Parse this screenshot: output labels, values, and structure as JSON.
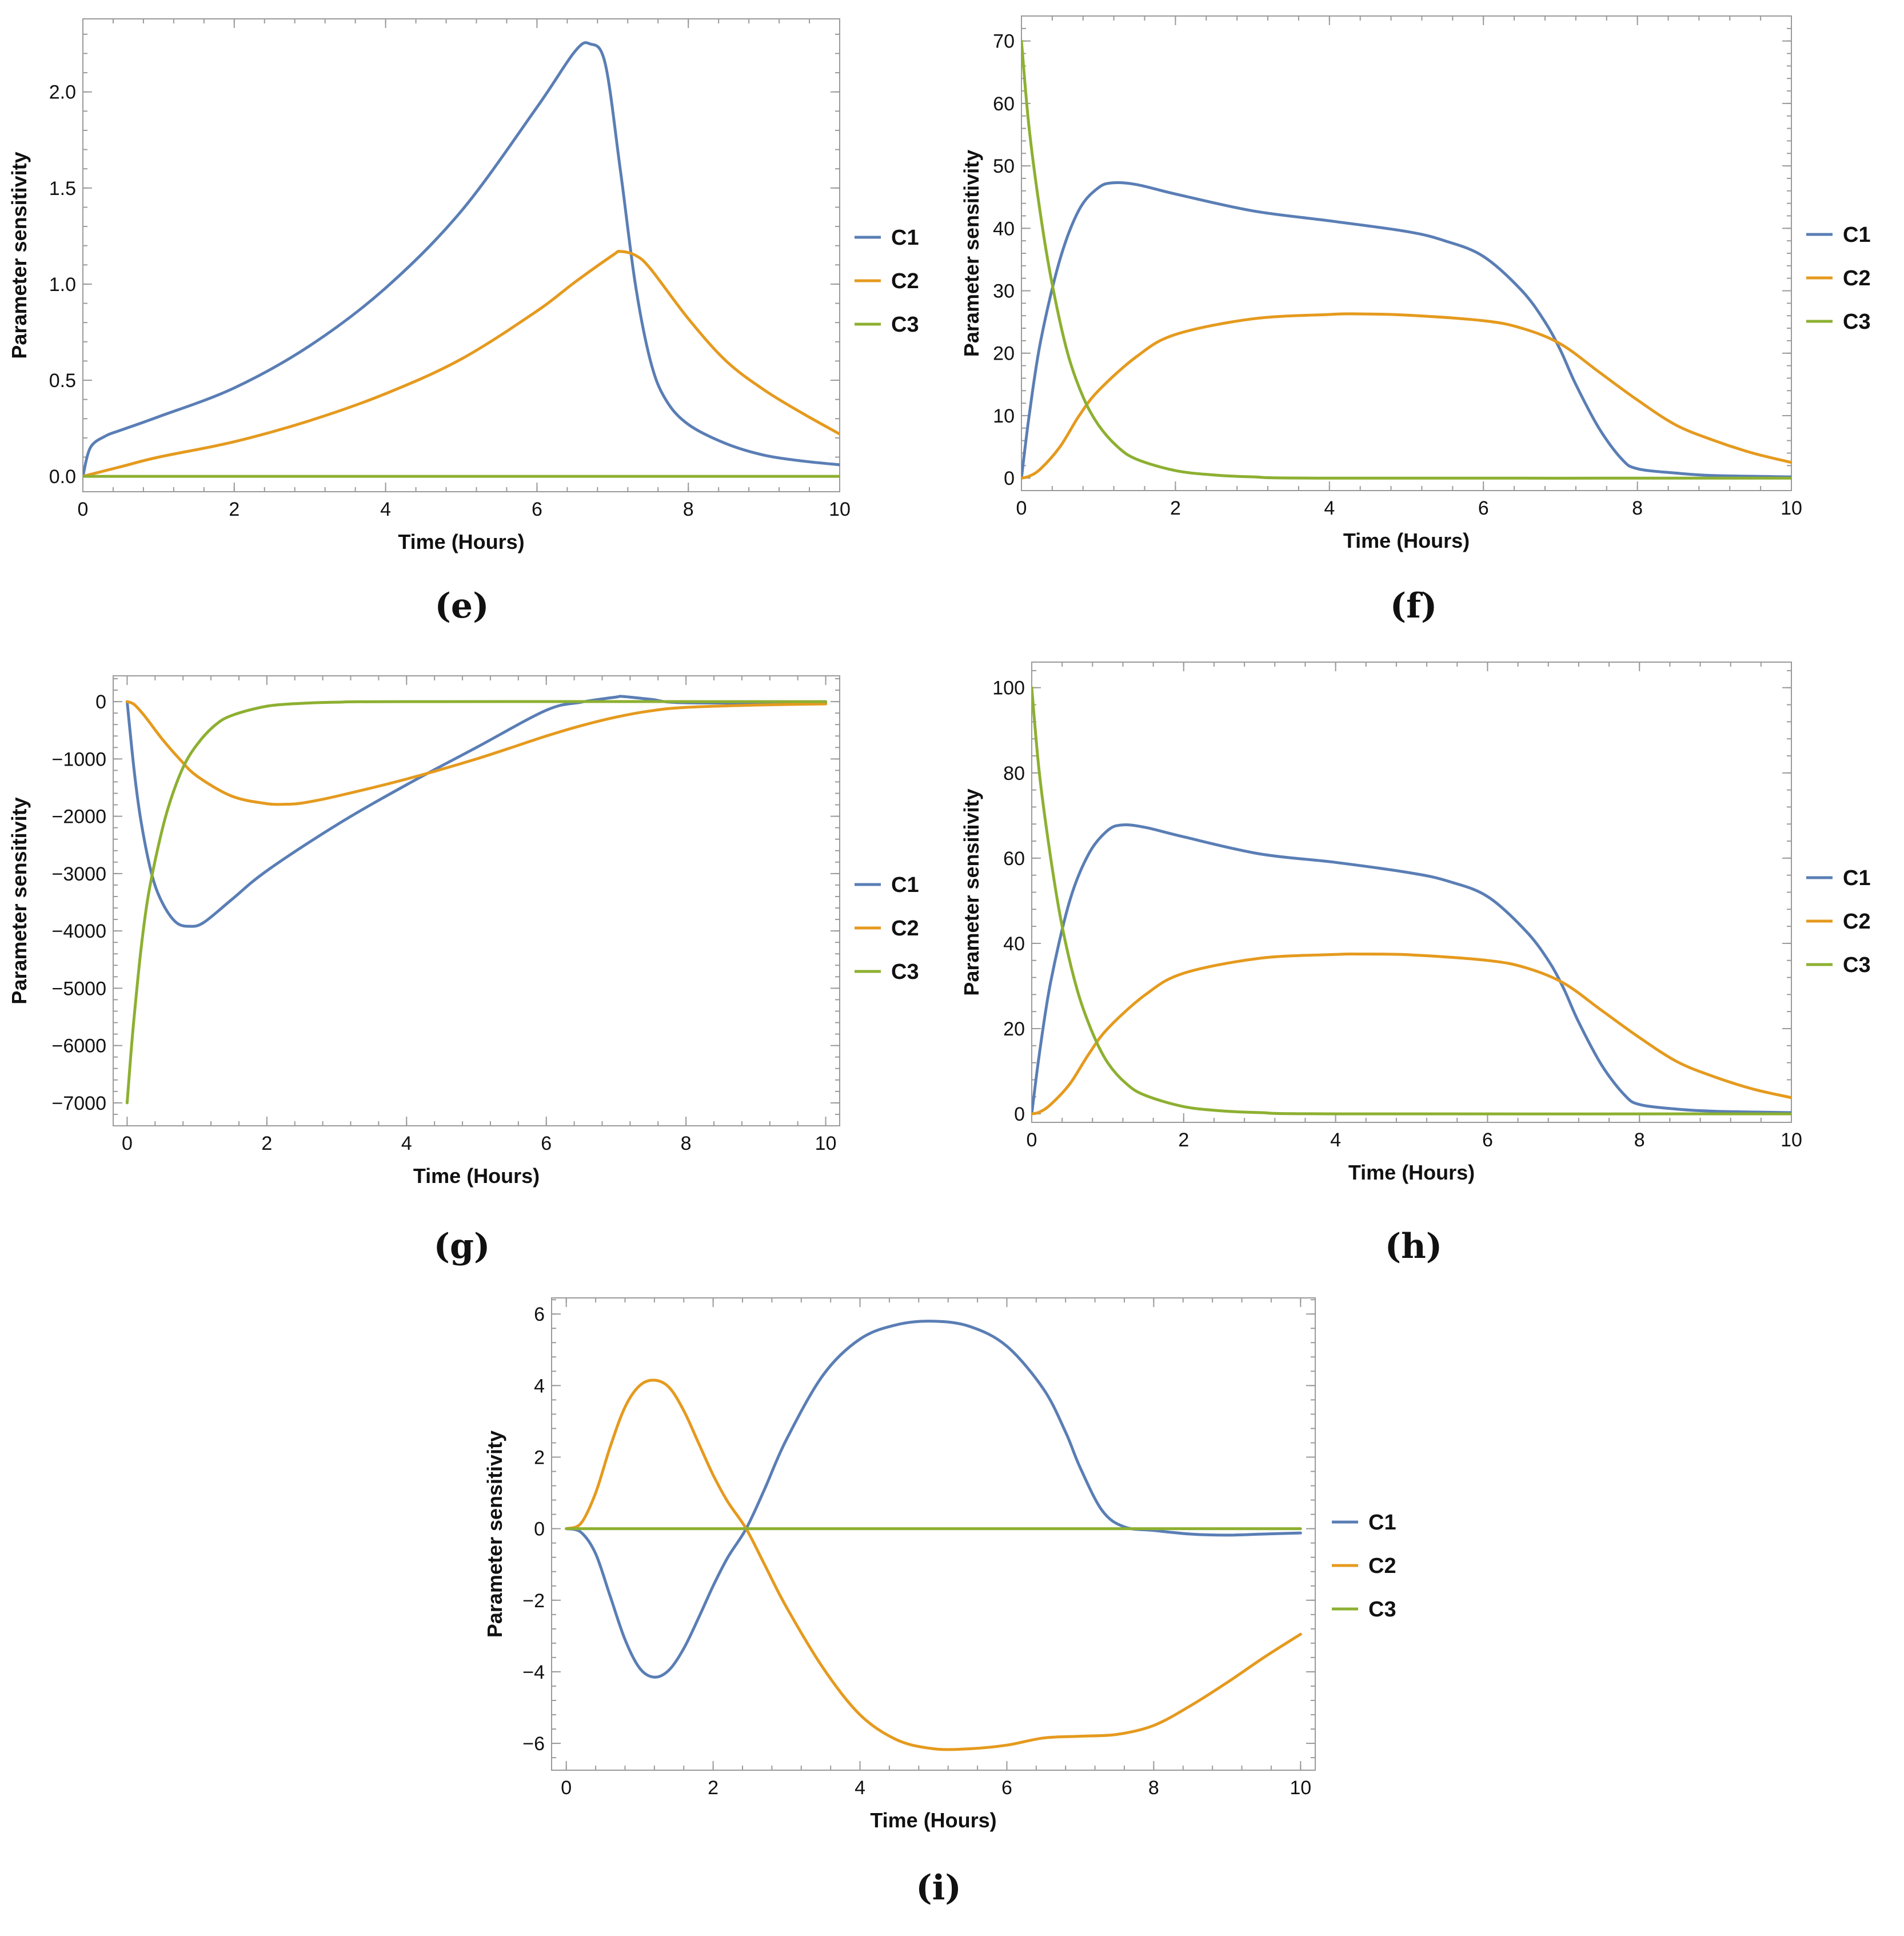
{
  "chart_data": [
    {
      "type": "line",
      "panel_label": "(e)",
      "xlabel": "Time (Hours)",
      "ylabel": "Parameter sensitivity",
      "xlim": [
        0,
        10
      ],
      "ylim": [
        -0.08,
        2.38
      ],
      "xticks": [
        0,
        2,
        4,
        6,
        8,
        10
      ],
      "xtick_labels": [
        "0",
        "2",
        "4",
        "6",
        "8",
        "10"
      ],
      "yticks": [
        0.0,
        0.5,
        1.0,
        1.5,
        2.0
      ],
      "ytick_labels": [
        "0.0",
        "0.5",
        "1.0",
        "1.5",
        "2.0"
      ],
      "legend": [
        "C1",
        "C2",
        "C3"
      ],
      "series": [
        {
          "name": "C1",
          "color": "#5a7eb5",
          "x": [
            0,
            0.1,
            0.3,
            0.5,
            1,
            2,
            3,
            4,
            5,
            6,
            6.5,
            6.7,
            6.9,
            7.1,
            7.3,
            7.5,
            7.7,
            8,
            8.5,
            9,
            9.5,
            10
          ],
          "y": [
            0,
            0.15,
            0.21,
            0.24,
            0.31,
            0.46,
            0.68,
            0.98,
            1.38,
            1.92,
            2.21,
            2.25,
            2.15,
            1.6,
            1.0,
            0.6,
            0.4,
            0.27,
            0.17,
            0.11,
            0.08,
            0.06
          ]
        },
        {
          "name": "C2",
          "color": "#e59a1e",
          "x": [
            0,
            0.5,
            1,
            2,
            3,
            4,
            5,
            6,
            6.5,
            7,
            7.1,
            7.3,
            7.5,
            8,
            8.5,
            9,
            9.5,
            10
          ],
          "y": [
            0,
            0.05,
            0.1,
            0.18,
            0.29,
            0.43,
            0.61,
            0.86,
            1.01,
            1.15,
            1.17,
            1.15,
            1.08,
            0.82,
            0.6,
            0.45,
            0.33,
            0.22
          ]
        },
        {
          "name": "C3",
          "color": "#8db031",
          "x": [
            0,
            10
          ],
          "y": [
            0,
            0
          ]
        }
      ]
    },
    {
      "type": "line",
      "panel_label": "(f)",
      "xlabel": "Time (Hours)",
      "ylabel": "Parameter sensitivity",
      "xlim": [
        0,
        10
      ],
      "ylim": [
        -2,
        74
      ],
      "xticks": [
        0,
        2,
        4,
        6,
        8,
        10
      ],
      "xtick_labels": [
        "0",
        "2",
        "4",
        "6",
        "8",
        "10"
      ],
      "yticks": [
        0,
        10,
        20,
        30,
        40,
        50,
        60,
        70
      ],
      "ytick_labels": [
        "0",
        "10",
        "20",
        "30",
        "40",
        "50",
        "60",
        "70"
      ],
      "legend": [
        "C1",
        "C2",
        "C3"
      ],
      "series": [
        {
          "name": "C1",
          "color": "#5a7eb5",
          "x": [
            0,
            0.1,
            0.25,
            0.5,
            0.75,
            1,
            1.2,
            1.5,
            2,
            3,
            4,
            5,
            5.5,
            6,
            6.5,
            6.8,
            7,
            7.2,
            7.5,
            7.8,
            8,
            8.5,
            9,
            10
          ],
          "y": [
            0,
            10,
            22,
            35,
            43,
            46.5,
            47.3,
            47,
            45.5,
            42.8,
            41.2,
            39.5,
            38,
            35.5,
            30,
            25,
            20.5,
            15,
            8,
            3,
            1.5,
            0.8,
            0.4,
            0.2
          ]
        },
        {
          "name": "C2",
          "color": "#e59a1e",
          "x": [
            0,
            0.1,
            0.25,
            0.5,
            0.75,
            1,
            1.5,
            2,
            3,
            4,
            4.3,
            5,
            6,
            6.5,
            7,
            7.5,
            8,
            8.5,
            9,
            9.5,
            10
          ],
          "y": [
            0,
            0.3,
            1.5,
            5,
            10,
            14,
            19.5,
            23,
            25.5,
            26.2,
            26.3,
            26.1,
            25.2,
            24,
            21.5,
            17,
            12.5,
            8.5,
            6,
            4,
            2.5
          ]
        },
        {
          "name": "C3",
          "color": "#8db031",
          "x": [
            0,
            0.1,
            0.25,
            0.4,
            0.6,
            0.8,
            1,
            1.25,
            1.5,
            2,
            2.5,
            3,
            4,
            10
          ],
          "y": [
            70,
            56,
            42,
            31,
            20,
            13,
            8.5,
            5,
            3,
            1.2,
            0.5,
            0.2,
            0,
            0
          ]
        }
      ]
    },
    {
      "type": "line",
      "panel_label": "(g)",
      "xlabel": "Time (Hours)",
      "ylabel": "Parameter sensitivity",
      "xlim": [
        -0.2,
        10.2
      ],
      "ylim": [
        -7400,
        450
      ],
      "xticks": [
        0,
        2,
        4,
        6,
        8,
        10
      ],
      "xtick_labels": [
        "0",
        "2",
        "4",
        "6",
        "8",
        "10"
      ],
      "yticks": [
        0,
        -1000,
        -2000,
        -3000,
        -4000,
        -5000,
        -6000,
        -7000
      ],
      "ytick_labels": [
        "0",
        "−1000",
        "−2000",
        "−3000",
        "−4000",
        "−5000",
        "−6000",
        "−7000"
      ],
      "legend": [
        "C1",
        "C2",
        "C3"
      ],
      "series": [
        {
          "name": "C1",
          "color": "#5a7eb5",
          "x": [
            0,
            0.1,
            0.2,
            0.35,
            0.5,
            0.7,
            0.9,
            1.1,
            1.5,
            2,
            3,
            4,
            5,
            6,
            6.5,
            7,
            7.1,
            7.5,
            8,
            10
          ],
          "y": [
            0,
            -1200,
            -2100,
            -3000,
            -3500,
            -3850,
            -3920,
            -3850,
            -3450,
            -2950,
            -2150,
            -1450,
            -800,
            -150,
            -10,
            80,
            90,
            40,
            -20,
            -20
          ]
        },
        {
          "name": "C2",
          "color": "#e59a1e",
          "x": [
            0,
            0.1,
            0.25,
            0.5,
            0.75,
            1,
            1.5,
            2,
            2.25,
            2.5,
            3,
            4,
            5,
            6,
            6.5,
            7,
            7.5,
            8,
            9,
            10
          ],
          "y": [
            0,
            -50,
            -250,
            -650,
            -1000,
            -1300,
            -1650,
            -1780,
            -1790,
            -1770,
            -1650,
            -1350,
            -1000,
            -600,
            -420,
            -270,
            -160,
            -100,
            -60,
            -40
          ]
        },
        {
          "name": "C3",
          "color": "#8db031",
          "x": [
            0,
            0.05,
            0.1,
            0.2,
            0.3,
            0.45,
            0.6,
            0.8,
            1,
            1.25,
            1.5,
            2,
            2.5,
            3,
            4,
            10
          ],
          "y": [
            -7000,
            -6200,
            -5500,
            -4300,
            -3400,
            -2500,
            -1800,
            -1150,
            -750,
            -420,
            -240,
            -80,
            -30,
            -10,
            0,
            0
          ]
        }
      ]
    },
    {
      "type": "line",
      "panel_label": "(h)",
      "xlabel": "Time (Hours)",
      "ylabel": "Parameter sensitivity",
      "xlim": [
        0,
        10
      ],
      "ylim": [
        -2,
        106
      ],
      "xticks": [
        0,
        2,
        4,
        6,
        8,
        10
      ],
      "xtick_labels": [
        "0",
        "2",
        "4",
        "6",
        "8",
        "10"
      ],
      "yticks": [
        0,
        20,
        40,
        60,
        80,
        100
      ],
      "ytick_labels": [
        "0",
        "20",
        "40",
        "60",
        "80",
        "100"
      ],
      "legend": [
        "C1",
        "C2",
        "C3"
      ],
      "series": [
        {
          "name": "C1",
          "color": "#5a7eb5",
          "x": [
            0,
            0.1,
            0.25,
            0.5,
            0.75,
            1,
            1.2,
            1.5,
            2,
            3,
            4,
            5,
            5.5,
            6,
            6.5,
            6.8,
            7,
            7.2,
            7.5,
            7.8,
            8,
            8.5,
            9,
            10
          ],
          "y": [
            0,
            14,
            31,
            50,
            61,
            66.5,
            67.8,
            67.2,
            65,
            61,
            59,
            56.5,
            54.5,
            51,
            43,
            36,
            29.5,
            21.5,
            11.5,
            4.5,
            2.2,
            1.1,
            0.6,
            0.3
          ]
        },
        {
          "name": "C2",
          "color": "#e59a1e",
          "x": [
            0,
            0.1,
            0.25,
            0.5,
            0.75,
            1,
            1.5,
            2,
            3,
            4,
            4.3,
            5,
            6,
            6.5,
            7,
            7.5,
            8,
            8.5,
            9,
            9.5,
            10
          ],
          "y": [
            0,
            0.4,
            2.2,
            7,
            14,
            20,
            28,
            33,
            36.5,
            37.4,
            37.5,
            37.3,
            36,
            34.3,
            30.7,
            24.3,
            17.9,
            12.2,
            8.6,
            5.8,
            3.8
          ]
        },
        {
          "name": "C3",
          "color": "#8db031",
          "x": [
            0,
            0.1,
            0.25,
            0.4,
            0.6,
            0.8,
            1,
            1.25,
            1.5,
            2,
            2.5,
            3,
            4,
            10
          ],
          "y": [
            100,
            80,
            60,
            44,
            29,
            19,
            12,
            7,
            4.3,
            1.7,
            0.7,
            0.3,
            0,
            0
          ]
        }
      ]
    },
    {
      "type": "line",
      "panel_label": "(i)",
      "xlabel": "Time (Hours)",
      "ylabel": "Parameter sensitivity",
      "xlim": [
        -0.2,
        10.2
      ],
      "ylim": [
        -6.75,
        6.45
      ],
      "xticks": [
        0,
        2,
        4,
        6,
        8,
        10
      ],
      "xtick_labels": [
        "0",
        "2",
        "4",
        "6",
        "8",
        "10"
      ],
      "yticks": [
        6,
        4,
        2,
        0,
        -2,
        -4,
        -6
      ],
      "ytick_labels": [
        "6",
        "4",
        "2",
        "0",
        "−2",
        "−4",
        "−6"
      ],
      "legend": [
        "C1",
        "C2",
        "C3"
      ],
      "series": [
        {
          "name": "C1",
          "color": "#5a7eb5",
          "x": [
            0,
            0.2,
            0.4,
            0.6,
            0.8,
            1,
            1.2,
            1.4,
            1.6,
            1.8,
            2,
            2.2,
            2.45,
            2.7,
            3,
            3.5,
            4,
            4.5,
            5,
            5.5,
            6,
            6.5,
            6.8,
            7,
            7.3,
            7.6,
            8,
            8.5,
            9,
            9.5,
            10
          ],
          "y": [
            0,
            -0.1,
            -0.7,
            -1.9,
            -3.1,
            -3.9,
            -4.15,
            -3.95,
            -3.35,
            -2.5,
            -1.6,
            -0.8,
            0,
            1.1,
            2.5,
            4.3,
            5.3,
            5.7,
            5.8,
            5.65,
            5.1,
            3.9,
            2.7,
            1.7,
            0.5,
            0.05,
            -0.05,
            -0.15,
            -0.18,
            -0.15,
            -0.12
          ]
        },
        {
          "name": "C2",
          "color": "#e59a1e",
          "x": [
            0,
            0.2,
            0.4,
            0.6,
            0.8,
            1,
            1.2,
            1.4,
            1.6,
            1.8,
            2,
            2.2,
            2.45,
            2.7,
            3,
            3.5,
            4,
            4.5,
            5,
            5.5,
            6,
            6.5,
            7,
            7.5,
            8,
            8.5,
            9,
            9.5,
            10
          ],
          "y": [
            0,
            0.15,
            1.0,
            2.3,
            3.4,
            4.0,
            4.15,
            3.95,
            3.3,
            2.4,
            1.5,
            0.75,
            0,
            -1.0,
            -2.2,
            -3.9,
            -5.2,
            -5.9,
            -6.15,
            -6.15,
            -6.05,
            -5.85,
            -5.8,
            -5.75,
            -5.5,
            -4.95,
            -4.3,
            -3.6,
            -2.95
          ]
        },
        {
          "name": "C3",
          "color": "#8db031",
          "x": [
            0,
            10
          ],
          "y": [
            0,
            0
          ]
        }
      ]
    }
  ]
}
